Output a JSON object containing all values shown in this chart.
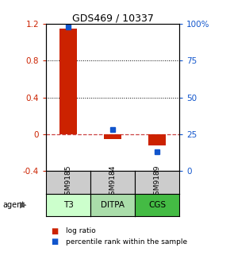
{
  "title": "GDS469 / 10337",
  "samples": [
    "GSM9185",
    "GSM9184",
    "GSM9189"
  ],
  "agents": [
    "T3",
    "DITPA",
    "CGS"
  ],
  "log_ratios": [
    1.15,
    -0.05,
    -0.12
  ],
  "percentile_ranks": [
    98,
    28,
    13
  ],
  "ylim_left": [
    -0.4,
    1.2
  ],
  "ylim_right": [
    0,
    100
  ],
  "yticks_left": [
    -0.4,
    0.0,
    0.4,
    0.8,
    1.2
  ],
  "yticks_right": [
    0,
    25,
    50,
    75,
    100
  ],
  "ytick_labels_left": [
    "-0.4",
    "0",
    "0.4",
    "0.8",
    "1.2"
  ],
  "ytick_labels_right": [
    "0",
    "25",
    "50",
    "75",
    "100%"
  ],
  "bar_color": "#cc2200",
  "dot_color": "#1155cc",
  "zero_line_color": "#cc4444",
  "sample_box_color": "#cccccc",
  "agent_colors": [
    "#ccffcc",
    "#aaddaa",
    "#44bb44"
  ],
  "bar_width": 0.4,
  "title_fontsize": 9,
  "tick_fontsize": 7.5,
  "legend_fontsize": 6.5
}
